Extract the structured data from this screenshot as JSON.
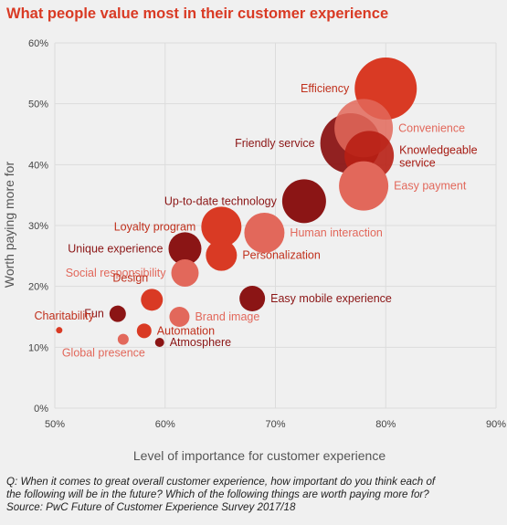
{
  "title": "What people value most in their customer experience",
  "footnote": {
    "line1": "Q: When it comes to great overall customer experience, how important do you think each of",
    "line2": "the following will be in the future? Which of the following things are worth paying more for?",
    "line3": "Source: PwC Future of Customer Experience Survey 2017/18"
  },
  "chart_data": {
    "type": "scatter",
    "xlabel": "Level of importance for customer experience",
    "ylabel": "Worth paying more for",
    "xlim": [
      0.5,
      0.9
    ],
    "ylim": [
      0,
      0.6
    ],
    "x_ticks": [
      {
        "value": 0.5,
        "label": "50%"
      },
      {
        "value": 0.6,
        "label": "60%"
      },
      {
        "value": 0.7,
        "label": "70%"
      },
      {
        "value": 0.8,
        "label": "80%"
      },
      {
        "value": 0.9,
        "label": "90%"
      }
    ],
    "y_ticks": [
      {
        "value": 0.0,
        "label": "0%"
      },
      {
        "value": 0.1,
        "label": "10%"
      },
      {
        "value": 0.2,
        "label": "20%"
      },
      {
        "value": 0.3,
        "label": "30%"
      },
      {
        "value": 0.4,
        "label": "40%"
      },
      {
        "value": 0.5,
        "label": "50%"
      },
      {
        "value": 0.6,
        "label": "60%"
      }
    ],
    "grid": true,
    "points": [
      {
        "label": "Efficiency",
        "x": 0.8,
        "y": 0.525,
        "size": 34,
        "color": "#d93a24",
        "opacity": 1,
        "label_side": "left",
        "label_color": "#c0301c"
      },
      {
        "label": "Convenience",
        "x": 0.78,
        "y": 0.46,
        "size": 32,
        "color": "#e2685b",
        "opacity": 0.85,
        "label_side": "right",
        "label_color": "#e2685b"
      },
      {
        "label": "Friendly service",
        "x": 0.768,
        "y": 0.435,
        "size": 33,
        "color": "#8b1515",
        "opacity": 0.95,
        "label_side": "left",
        "label_color": "#8b1515"
      },
      {
        "label": "Knowledgeable service",
        "x": 0.785,
        "y": 0.415,
        "size": 27,
        "color": "#b81f14",
        "opacity": 0.9,
        "label_side": "right",
        "label_color": "#a61a12"
      },
      {
        "label": "Easy payment",
        "x": 0.78,
        "y": 0.365,
        "size": 27,
        "color": "#e2685b",
        "opacity": 1,
        "label_side": "right",
        "label_color": "#e2685b"
      },
      {
        "label": "Up-to-date technology",
        "x": 0.726,
        "y": 0.34,
        "size": 24,
        "color": "#8b1515",
        "opacity": 1,
        "label_side": "left",
        "label_color": "#8b1515"
      },
      {
        "label": "Human interaction",
        "x": 0.69,
        "y": 0.288,
        "size": 22,
        "color": "#e2685b",
        "opacity": 1,
        "label_side": "right",
        "label_color": "#e2685b"
      },
      {
        "label": "Loyalty program",
        "x": 0.651,
        "y": 0.298,
        "size": 22,
        "color": "#d93a24",
        "opacity": 1,
        "label_side": "left",
        "label_color": "#c0301c"
      },
      {
        "label": "Personalization",
        "x": 0.651,
        "y": 0.251,
        "size": 17,
        "color": "#d93a24",
        "opacity": 1,
        "label_side": "right",
        "label_color": "#c0301c"
      },
      {
        "label": "Unique experience",
        "x": 0.618,
        "y": 0.262,
        "size": 18,
        "color": "#8b1515",
        "opacity": 1,
        "label_side": "left",
        "label_color": "#8b1515"
      },
      {
        "label": "Social responsibility",
        "x": 0.618,
        "y": 0.222,
        "size": 15,
        "color": "#e2685b",
        "opacity": 1,
        "label_side": "left",
        "label_color": "#e2685b"
      },
      {
        "label": "Easy mobile experience",
        "x": 0.679,
        "y": 0.18,
        "size": 14,
        "color": "#8b1515",
        "opacity": 1,
        "label_side": "right",
        "label_color": "#8b1515"
      },
      {
        "label": "Design",
        "x": 0.588,
        "y": 0.178,
        "size": 12,
        "color": "#d93a24",
        "opacity": 1,
        "label_side": "above-left",
        "label_color": "#c0301c"
      },
      {
        "label": "Brand image",
        "x": 0.613,
        "y": 0.15,
        "size": 11,
        "color": "#e2685b",
        "opacity": 1,
        "label_side": "right",
        "label_color": "#e2685b"
      },
      {
        "label": "Fun",
        "x": 0.557,
        "y": 0.155,
        "size": 9,
        "color": "#8b1515",
        "opacity": 1,
        "label_side": "left",
        "label_color": "#8b1515"
      },
      {
        "label": "Automation",
        "x": 0.581,
        "y": 0.127,
        "size": 8,
        "color": "#d93a24",
        "opacity": 1,
        "label_side": "right",
        "label_color": "#c0301c"
      },
      {
        "label": "Charitability",
        "x": 0.504,
        "y": 0.128,
        "size": 3.5,
        "color": "#d93a24",
        "opacity": 1,
        "label_side": "above-left",
        "label_color": "#c0301c"
      },
      {
        "label": "Atmosphere",
        "x": 0.595,
        "y": 0.108,
        "size": 5,
        "color": "#8b1515",
        "opacity": 1,
        "label_side": "right",
        "label_color": "#8b1515"
      },
      {
        "label": "Global presence",
        "x": 0.562,
        "y": 0.113,
        "size": 6,
        "color": "#e2685b",
        "opacity": 1,
        "label_side": "below-left",
        "label_color": "#e2685b"
      }
    ]
  }
}
